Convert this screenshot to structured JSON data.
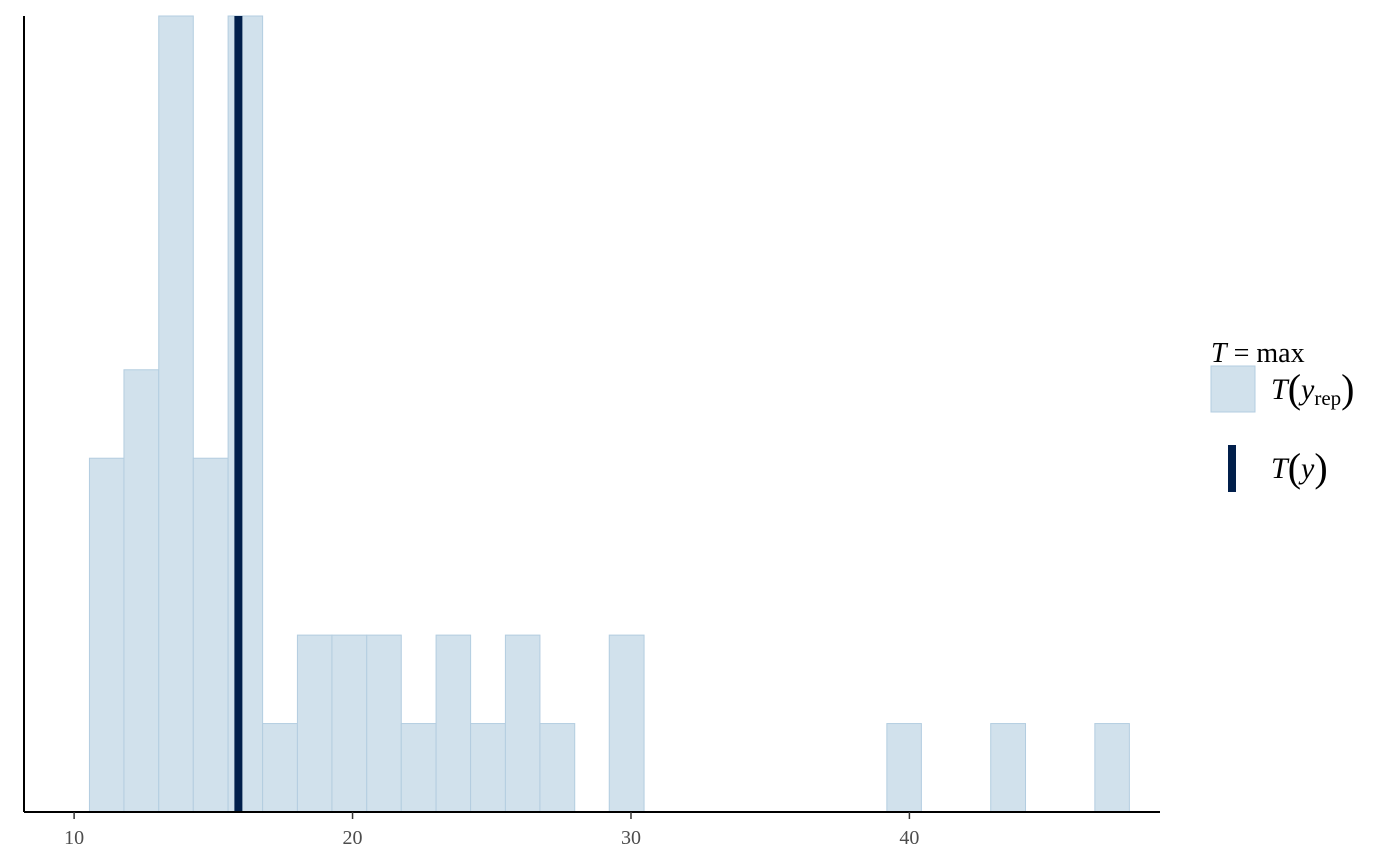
{
  "chart_data": {
    "type": "bar",
    "subtype": "histogram",
    "title": "",
    "xlabel": "",
    "ylabel": "",
    "xlim": [
      8.2,
      49
    ],
    "ylim": [
      0,
      9
    ],
    "x_ticks": [
      10,
      20,
      30,
      40
    ],
    "y_axis_ticks_shown": false,
    "grid": false,
    "bin_width": 1.245,
    "bins": [
      {
        "x0": 10.55,
        "x1": 11.79,
        "count": 4
      },
      {
        "x0": 11.79,
        "x1": 13.04,
        "count": 5
      },
      {
        "x0": 13.04,
        "x1": 14.28,
        "count": 9
      },
      {
        "x0": 14.28,
        "x1": 15.53,
        "count": 4
      },
      {
        "x0": 15.53,
        "x1": 16.77,
        "count": 9
      },
      {
        "x0": 16.77,
        "x1": 18.02,
        "count": 1
      },
      {
        "x0": 18.02,
        "x1": 19.26,
        "count": 2
      },
      {
        "x0": 19.26,
        "x1": 20.51,
        "count": 2
      },
      {
        "x0": 20.51,
        "x1": 21.75,
        "count": 2
      },
      {
        "x0": 21.75,
        "x1": 23.0,
        "count": 1
      },
      {
        "x0": 23.0,
        "x1": 24.24,
        "count": 2
      },
      {
        "x0": 24.24,
        "x1": 25.49,
        "count": 1
      },
      {
        "x0": 25.49,
        "x1": 26.73,
        "count": 2
      },
      {
        "x0": 26.73,
        "x1": 27.98,
        "count": 1
      },
      {
        "x0": 29.22,
        "x1": 30.47,
        "count": 2
      },
      {
        "x0": 39.19,
        "x1": 40.43,
        "count": 1
      },
      {
        "x0": 42.92,
        "x1": 44.17,
        "count": 1
      },
      {
        "x0": 46.66,
        "x1": 47.9,
        "count": 1
      }
    ],
    "observed_value": 15.9,
    "legend": {
      "placement": "right",
      "title_symbol": "T",
      "title_text": " = max",
      "items": [
        {
          "kind": "fill",
          "symbol": "T",
          "arg": "y",
          "subscript": "rep"
        },
        {
          "kind": "line",
          "symbol": "T",
          "arg": "y",
          "subscript": ""
        }
      ]
    },
    "colors": {
      "bar_fill": "#d1e1ec",
      "bar_stroke": "#b3cde0",
      "observed_line": "#011f4b",
      "axis": "#000000",
      "tick_label": "#4d4d4d"
    }
  }
}
